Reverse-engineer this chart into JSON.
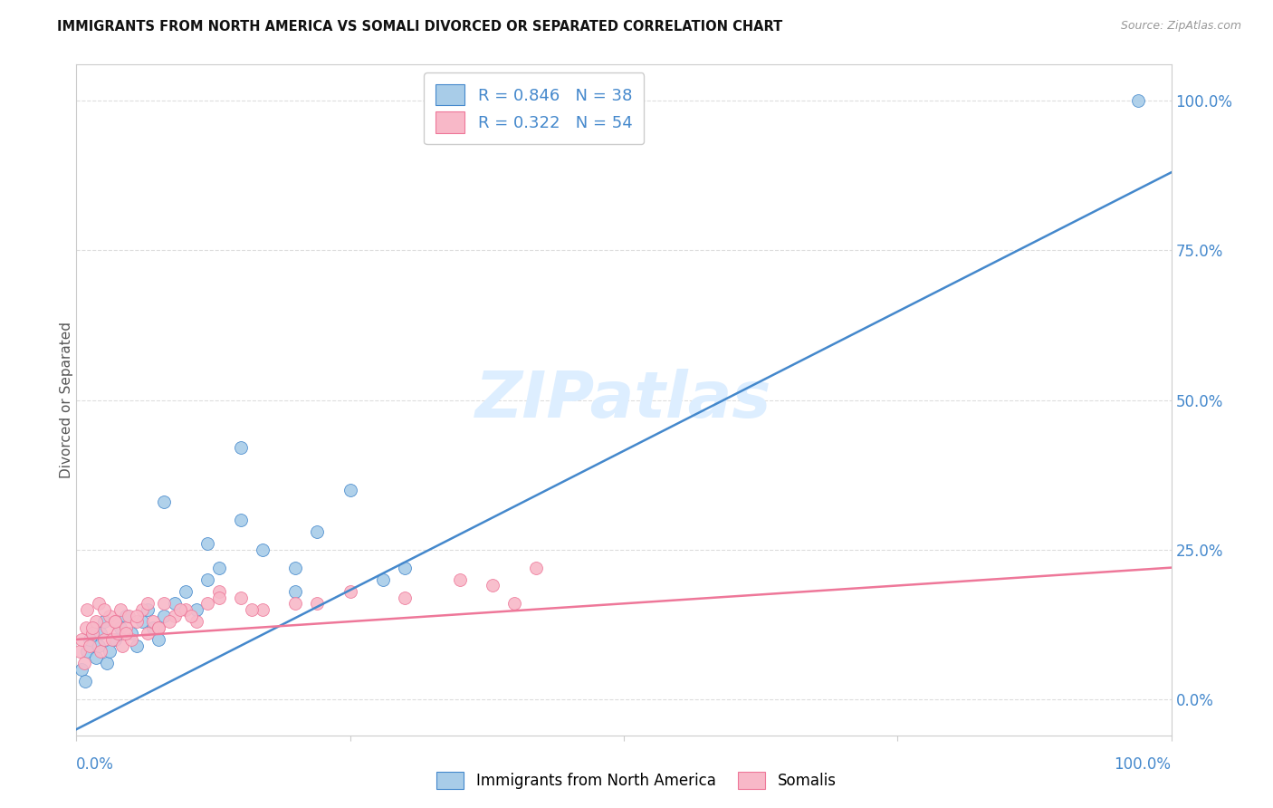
{
  "title": "IMMIGRANTS FROM NORTH AMERICA VS SOMALI DIVORCED OR SEPARATED CORRELATION CHART",
  "source": "Source: ZipAtlas.com",
  "ylabel": "Divorced or Separated",
  "right_yticks": [
    "0.0%",
    "25.0%",
    "50.0%",
    "75.0%",
    "100.0%"
  ],
  "right_ytick_vals": [
    0.0,
    0.25,
    0.5,
    0.75,
    1.0
  ],
  "legend_blue_r": "R = 0.846",
  "legend_blue_n": "N = 38",
  "legend_pink_r": "R = 0.322",
  "legend_pink_n": "N = 54",
  "legend_label_blue": "Immigrants from North America",
  "legend_label_pink": "Somalis",
  "blue_color": "#a8cce8",
  "pink_color": "#f8b8c8",
  "blue_line_color": "#4488cc",
  "pink_line_color": "#ee7799",
  "watermark_color": "#ddeeff",
  "blue_scatter_x": [
    0.005,
    0.008,
    0.01,
    0.012,
    0.015,
    0.018,
    0.02,
    0.022,
    0.025,
    0.028,
    0.03,
    0.035,
    0.04,
    0.045,
    0.05,
    0.055,
    0.06,
    0.065,
    0.07,
    0.075,
    0.08,
    0.09,
    0.1,
    0.11,
    0.12,
    0.13,
    0.15,
    0.17,
    0.2,
    0.22,
    0.25,
    0.28,
    0.3,
    0.15,
    0.08,
    0.12,
    0.2,
    0.97
  ],
  "blue_scatter_y": [
    0.05,
    0.03,
    0.08,
    0.1,
    0.12,
    0.07,
    0.09,
    0.11,
    0.13,
    0.06,
    0.08,
    0.1,
    0.12,
    0.14,
    0.11,
    0.09,
    0.13,
    0.15,
    0.12,
    0.1,
    0.14,
    0.16,
    0.18,
    0.15,
    0.2,
    0.22,
    0.3,
    0.25,
    0.22,
    0.28,
    0.35,
    0.2,
    0.22,
    0.42,
    0.33,
    0.26,
    0.18,
    1.0
  ],
  "pink_scatter_x": [
    0.003,
    0.005,
    0.007,
    0.009,
    0.01,
    0.012,
    0.015,
    0.018,
    0.02,
    0.022,
    0.025,
    0.028,
    0.03,
    0.033,
    0.035,
    0.038,
    0.04,
    0.042,
    0.045,
    0.048,
    0.05,
    0.055,
    0.06,
    0.065,
    0.07,
    0.075,
    0.08,
    0.09,
    0.1,
    0.11,
    0.12,
    0.13,
    0.15,
    0.17,
    0.2,
    0.25,
    0.3,
    0.35,
    0.4,
    0.42,
    0.015,
    0.025,
    0.035,
    0.045,
    0.055,
    0.065,
    0.075,
    0.085,
    0.095,
    0.105,
    0.13,
    0.16,
    0.22,
    0.38
  ],
  "pink_scatter_y": [
    0.08,
    0.1,
    0.06,
    0.12,
    0.15,
    0.09,
    0.11,
    0.13,
    0.16,
    0.08,
    0.1,
    0.12,
    0.14,
    0.1,
    0.13,
    0.11,
    0.15,
    0.09,
    0.12,
    0.14,
    0.1,
    0.13,
    0.15,
    0.11,
    0.13,
    0.12,
    0.16,
    0.14,
    0.15,
    0.13,
    0.16,
    0.18,
    0.17,
    0.15,
    0.16,
    0.18,
    0.17,
    0.2,
    0.16,
    0.22,
    0.12,
    0.15,
    0.13,
    0.11,
    0.14,
    0.16,
    0.12,
    0.13,
    0.15,
    0.14,
    0.17,
    0.15,
    0.16,
    0.19
  ],
  "blue_line_x": [
    0.0,
    1.0
  ],
  "blue_line_y": [
    -0.05,
    0.88
  ],
  "pink_line_x": [
    0.0,
    1.0
  ],
  "pink_line_y": [
    0.1,
    0.22
  ],
  "xlim": [
    0.0,
    1.0
  ],
  "ylim": [
    -0.06,
    1.06
  ],
  "grid_color": "#dddddd",
  "spine_color": "#cccccc"
}
